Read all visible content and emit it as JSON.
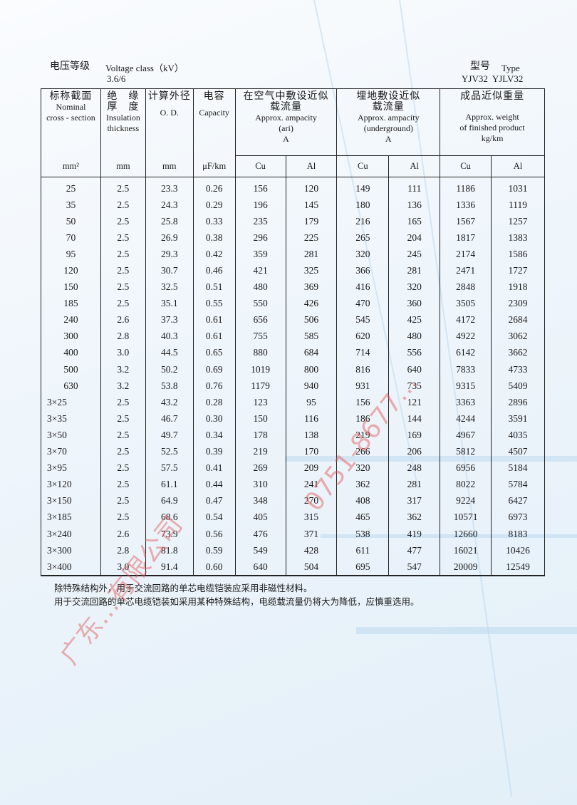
{
  "header": {
    "voltage_label_zh": "电压等级",
    "voltage_label_en": "Voltage class（kV）",
    "voltage_value": "3.6/6",
    "type_label_zh": "型号",
    "type_label_en": "Type",
    "type_value": "YJV32  YJLV32"
  },
  "table": {
    "columns": [
      {
        "zh": "标称截面",
        "en": "Nominal\ncross - section",
        "unit": "mm²"
      },
      {
        "zh": "绝　缘\n厚　度",
        "en": "Insulation\nthickness",
        "unit": "mm"
      },
      {
        "zh": "计算外径",
        "en": "O. D.",
        "unit": "mm"
      },
      {
        "zh": "电容",
        "en": "Capacity",
        "unit": "μF/km"
      }
    ],
    "groups": [
      {
        "zh": "在空气中敷设近似\n载流量",
        "en": "Approx. ampacity\n(ari)\nA",
        "sub": [
          "Cu",
          "Al"
        ]
      },
      {
        "zh": "埋地敷设近似\n载流量",
        "en": "Approx. ampacity\n(underground)\nA",
        "sub": [
          "Cu",
          "Al"
        ]
      },
      {
        "zh": "成品近似重量",
        "en": "Approx. weight\nof finished product\nkg/km",
        "sub": [
          "Cu",
          "Al"
        ]
      }
    ],
    "rows": [
      [
        "25",
        "2.5",
        "23.3",
        "0.26",
        "156",
        "120",
        "149",
        "111",
        "1186",
        "1031"
      ],
      [
        "35",
        "2.5",
        "24.3",
        "0.29",
        "196",
        "145",
        "180",
        "136",
        "1336",
        "1119"
      ],
      [
        "50",
        "2.5",
        "25.8",
        "0.33",
        "235",
        "179",
        "216",
        "165",
        "1567",
        "1257"
      ],
      [
        "70",
        "2.5",
        "26.9",
        "0.38",
        "296",
        "225",
        "265",
        "204",
        "1817",
        "1383"
      ],
      [
        "95",
        "2.5",
        "29.3",
        "0.42",
        "359",
        "281",
        "320",
        "245",
        "2174",
        "1586"
      ],
      [
        "120",
        "2.5",
        "30.7",
        "0.46",
        "421",
        "325",
        "366",
        "281",
        "2471",
        "1727"
      ],
      [
        "150",
        "2.5",
        "32.5",
        "0.51",
        "480",
        "369",
        "416",
        "320",
        "2848",
        "1918"
      ],
      [
        "185",
        "2.5",
        "35.1",
        "0.55",
        "550",
        "426",
        "470",
        "360",
        "3505",
        "2309"
      ],
      [
        "240",
        "2.6",
        "37.3",
        "0.61",
        "656",
        "506",
        "545",
        "425",
        "4172",
        "2684"
      ],
      [
        "300",
        "2.8",
        "40.3",
        "0.61",
        "755",
        "585",
        "620",
        "480",
        "4922",
        "3062"
      ],
      [
        "400",
        "3.0",
        "44.5",
        "0.65",
        "880",
        "684",
        "714",
        "556",
        "6142",
        "3662"
      ],
      [
        "500",
        "3.2",
        "50.2",
        "0.69",
        "1019",
        "800",
        "816",
        "640",
        "7833",
        "4733"
      ],
      [
        "630",
        "3.2",
        "53.8",
        "0.76",
        "1179",
        "940",
        "931",
        "735",
        "9315",
        "5409"
      ],
      [
        "3×25",
        "2.5",
        "43.2",
        "0.28",
        "123",
        "95",
        "156",
        "121",
        "3363",
        "2896"
      ],
      [
        "3×35",
        "2.5",
        "46.7",
        "0.30",
        "150",
        "116",
        "186",
        "144",
        "4244",
        "3591"
      ],
      [
        "3×50",
        "2.5",
        "49.7",
        "0.34",
        "178",
        "138",
        "219",
        "169",
        "4967",
        "4035"
      ],
      [
        "3×70",
        "2.5",
        "52.5",
        "0.39",
        "219",
        "170",
        "266",
        "206",
        "5812",
        "4507"
      ],
      [
        "3×95",
        "2.5",
        "57.5",
        "0.41",
        "269",
        "209",
        "320",
        "248",
        "6956",
        "5184"
      ],
      [
        "3×120",
        "2.5",
        "61.1",
        "0.44",
        "310",
        "241",
        "362",
        "281",
        "8022",
        "5784"
      ],
      [
        "3×150",
        "2.5",
        "64.9",
        "0.47",
        "348",
        "270",
        "408",
        "317",
        "9224",
        "6427"
      ],
      [
        "3×185",
        "2.5",
        "68.6",
        "0.54",
        "405",
        "315",
        "465",
        "362",
        "10571",
        "6973"
      ],
      [
        "3×240",
        "2.6",
        "73.9",
        "0.56",
        "476",
        "371",
        "538",
        "419",
        "12660",
        "8183"
      ],
      [
        "3×300",
        "2.8",
        "81.8",
        "0.59",
        "549",
        "428",
        "611",
        "477",
        "16021",
        "10426"
      ],
      [
        "3×400",
        "3.0",
        "91.4",
        "0.60",
        "640",
        "504",
        "695",
        "547",
        "20009",
        "12549"
      ]
    ]
  },
  "notes": [
    "除特殊结构外，用于交流回路的单芯电缆铠装应采用非磁性材料。",
    "用于交流回路的单芯电缆铠装如采用某种特殊结构，电缆载流量仍将大为降低，应慎重选用。"
  ],
  "watermark": {
    "company": "广东…有限公司",
    "phone": "0751-8677…"
  },
  "colors": {
    "watermark": "#e25555",
    "background_tint": "#e3eff8"
  }
}
